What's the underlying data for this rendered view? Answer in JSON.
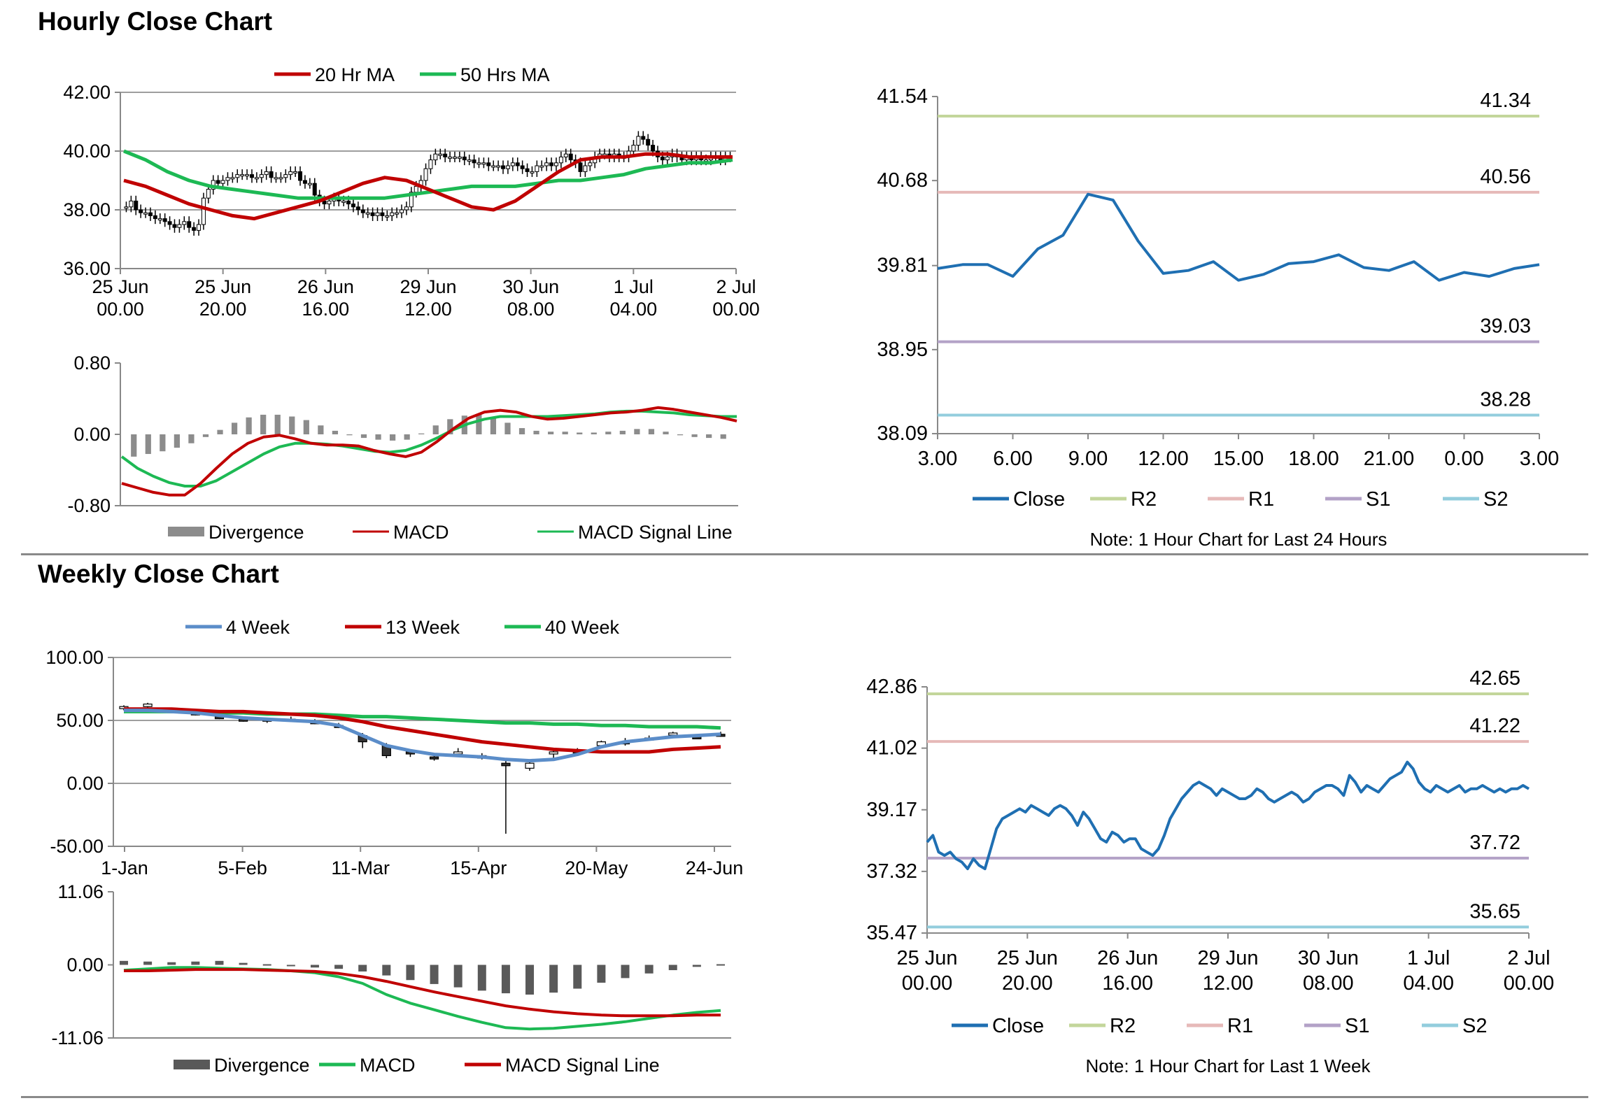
{
  "sections": {
    "hourly_title": "Hourly Close Chart",
    "weekly_title": "Weekly Close Chart"
  },
  "colors": {
    "ma20": "#c00000",
    "ma50": "#1db954",
    "close": "#1f6fb2",
    "r2": "#c3d69b",
    "r1": "#e6b9b8",
    "s1": "#b3a2c7",
    "s2": "#93cddd",
    "w4": "#5b8dc9",
    "divergence_light": "#8c8c8c",
    "divergence_dark": "#595959"
  },
  "chart_data": [
    {
      "id": "hourly_price",
      "type": "candlestick",
      "y_ticks": [
        "42.00",
        "40.00",
        "38.00",
        "36.00"
      ],
      "ylim": [
        36,
        42
      ],
      "x_ticks": [
        [
          "25 Jun",
          "00.00"
        ],
        [
          "25 Jun",
          "20.00"
        ],
        [
          "26 Jun",
          "16.00"
        ],
        [
          "29 Jun",
          "12.00"
        ],
        [
          "30 Jun",
          "08.00"
        ],
        [
          "1 Jul",
          "04.00"
        ],
        [
          "2 Jul",
          "00.00"
        ]
      ],
      "legend": [
        "20 Hr MA",
        "50 Hrs MA"
      ],
      "n": 126,
      "close": [
        38.1,
        38.3,
        38.0,
        37.9,
        37.9,
        37.8,
        37.7,
        37.7,
        37.6,
        37.5,
        37.4,
        37.5,
        37.6,
        37.4,
        37.3,
        37.5,
        38.4,
        38.7,
        39.0,
        38.9,
        39.0,
        39.1,
        39.1,
        39.2,
        39.2,
        39.2,
        39.1,
        39.1,
        39.2,
        39.3,
        39.1,
        39.1,
        39.1,
        39.2,
        39.3,
        39.3,
        39.0,
        38.9,
        38.9,
        38.5,
        38.3,
        38.2,
        38.3,
        38.4,
        38.3,
        38.3,
        38.2,
        38.1,
        38.0,
        37.9,
        37.9,
        37.8,
        37.9,
        37.8,
        37.8,
        37.9,
        37.9,
        38.0,
        38.1,
        38.6,
        38.8,
        39.0,
        39.4,
        39.7,
        39.9,
        39.9,
        39.8,
        39.8,
        39.8,
        39.8,
        39.7,
        39.7,
        39.6,
        39.6,
        39.6,
        39.5,
        39.5,
        39.5,
        39.4,
        39.5,
        39.6,
        39.5,
        39.4,
        39.3,
        39.3,
        39.5,
        39.5,
        39.6,
        39.5,
        39.6,
        39.8,
        39.9,
        39.7,
        39.6,
        39.3,
        39.5,
        39.6,
        39.8,
        39.9,
        39.9,
        39.8,
        39.9,
        39.8,
        39.8,
        40.0,
        40.2,
        40.5,
        40.4,
        40.2,
        40.0,
        39.8,
        39.7,
        39.8,
        39.9,
        39.8,
        39.7,
        39.8,
        39.7,
        39.8,
        39.7,
        39.7,
        39.8,
        39.8,
        39.7,
        39.8,
        39.8
      ],
      "ma20": [
        39.0,
        38.8,
        38.5,
        38.2,
        38.0,
        37.8,
        37.7,
        37.9,
        38.1,
        38.3,
        38.6,
        38.9,
        39.1,
        39.0,
        38.7,
        38.4,
        38.1,
        38.0,
        38.3,
        38.8,
        39.3,
        39.7,
        39.8,
        39.8,
        39.9,
        39.9,
        39.8,
        39.8,
        39.8
      ],
      "ma50": [
        40.0,
        39.7,
        39.3,
        39.0,
        38.8,
        38.7,
        38.6,
        38.5,
        38.4,
        38.4,
        38.4,
        38.4,
        38.4,
        38.5,
        38.6,
        38.7,
        38.8,
        38.8,
        38.8,
        38.9,
        39.0,
        39.0,
        39.1,
        39.2,
        39.4,
        39.5,
        39.6,
        39.6,
        39.7
      ]
    },
    {
      "id": "hourly_macd",
      "type": "bar+line",
      "y_ticks": [
        "0.80",
        "0.00",
        "-0.80"
      ],
      "ylim": [
        -0.8,
        0.8
      ],
      "legend": [
        "Divergence",
        "MACD",
        "MACD Signal Line"
      ],
      "divergence": [
        -0.25,
        -0.22,
        -0.19,
        -0.15,
        -0.1,
        -0.03,
        0.05,
        0.13,
        0.19,
        0.22,
        0.22,
        0.2,
        0.16,
        0.1,
        0.04,
        -0.01,
        -0.04,
        -0.06,
        -0.07,
        -0.06,
        0.01,
        0.1,
        0.17,
        0.21,
        0.22,
        0.19,
        0.13,
        0.07,
        0.04,
        0.03,
        0.03,
        0.02,
        0.02,
        0.03,
        0.04,
        0.06,
        0.06,
        0.03,
        -0.01,
        -0.03,
        -0.04,
        -0.05
      ],
      "macd": [
        -0.55,
        -0.6,
        -0.65,
        -0.68,
        -0.68,
        -0.55,
        -0.38,
        -0.22,
        -0.1,
        -0.03,
        -0.01,
        -0.05,
        -0.1,
        -0.12,
        -0.12,
        -0.13,
        -0.18,
        -0.22,
        -0.25,
        -0.2,
        -0.08,
        0.06,
        0.18,
        0.25,
        0.27,
        0.25,
        0.2,
        0.17,
        0.18,
        0.2,
        0.22,
        0.24,
        0.25,
        0.27,
        0.3,
        0.28,
        0.25,
        0.22,
        0.19,
        0.15
      ],
      "signal": [
        -0.25,
        -0.38,
        -0.47,
        -0.54,
        -0.58,
        -0.58,
        -0.52,
        -0.42,
        -0.32,
        -0.22,
        -0.14,
        -0.1,
        -0.1,
        -0.11,
        -0.13,
        -0.16,
        -0.19,
        -0.2,
        -0.18,
        -0.12,
        -0.04,
        0.05,
        0.12,
        0.17,
        0.2,
        0.2,
        0.2,
        0.2,
        0.21,
        0.22,
        0.23,
        0.25,
        0.26,
        0.26,
        0.25,
        0.24,
        0.22,
        0.21,
        0.2,
        0.2
      ]
    },
    {
      "id": "hourly_24h",
      "type": "line",
      "y_ticks": [
        "41.54",
        "40.68",
        "39.81",
        "38.95",
        "38.09"
      ],
      "ylim": [
        38.09,
        41.54
      ],
      "x_ticks": [
        "3.00",
        "6.00",
        "9.00",
        "12.00",
        "15.00",
        "18.00",
        "21.00",
        "0.00",
        "3.00"
      ],
      "legend": [
        "Close",
        "R2",
        "R1",
        "S1",
        "S2"
      ],
      "levels": {
        "R2": "41.34",
        "R1": "40.56",
        "S1": "39.03",
        "S2": "38.28"
      },
      "close": [
        39.78,
        39.82,
        39.82,
        39.7,
        39.98,
        40.12,
        40.54,
        40.48,
        40.06,
        39.73,
        39.76,
        39.85,
        39.66,
        39.72,
        39.83,
        39.85,
        39.92,
        39.79,
        39.76,
        39.85,
        39.66,
        39.74,
        39.7,
        39.78,
        39.82
      ],
      "note": "Note: 1 Hour Chart for Last 24 Hours"
    },
    {
      "id": "weekly_price",
      "type": "candlestick",
      "y_ticks": [
        "100.00",
        "50.00",
        "0.00",
        "-50.00"
      ],
      "ylim": [
        -50,
        100
      ],
      "x_ticks": [
        "1-Jan",
        "5-Feb",
        "11-Mar",
        "15-Apr",
        "20-May",
        "24-Jun"
      ],
      "legend": [
        "4 Week",
        "13 Week",
        "40 Week"
      ],
      "candles": [
        [
          60,
          62,
          58,
          61
        ],
        [
          61,
          64,
          59,
          63
        ],
        [
          58,
          60,
          56,
          57
        ],
        [
          56,
          58,
          54,
          55
        ],
        [
          53,
          55,
          51,
          52
        ],
        [
          51,
          53,
          49,
          50
        ],
        [
          50,
          52,
          48,
          51
        ],
        [
          51,
          53,
          49,
          50
        ],
        [
          49,
          51,
          47,
          48
        ],
        [
          46,
          48,
          44,
          45
        ],
        [
          38,
          40,
          28,
          33
        ],
        [
          30,
          32,
          20,
          22
        ],
        [
          25,
          27,
          21,
          24
        ],
        [
          21,
          23,
          18,
          20
        ],
        [
          24,
          28,
          21,
          25
        ],
        [
          22,
          24,
          19,
          20
        ],
        [
          16,
          19,
          -40,
          14
        ],
        [
          12,
          18,
          10,
          16
        ],
        [
          24,
          26,
          20,
          25
        ],
        [
          26,
          28,
          22,
          24
        ],
        [
          30,
          34,
          29,
          33
        ],
        [
          33,
          36,
          30,
          32
        ],
        [
          36,
          38,
          34,
          35
        ],
        [
          39,
          41,
          37,
          40
        ],
        [
          37,
          39,
          35,
          36
        ],
        [
          39,
          41,
          37,
          38
        ]
      ],
      "w4": [
        58,
        58,
        57,
        56,
        54,
        52,
        51,
        50,
        49,
        46,
        38,
        30,
        26,
        23,
        22,
        21,
        19,
        18,
        19,
        23,
        29,
        33,
        35,
        37,
        38,
        39
      ],
      "w13": [
        59,
        59,
        59,
        58,
        57,
        57,
        56,
        55,
        54,
        52,
        49,
        45,
        42,
        39,
        36,
        33,
        31,
        29,
        27,
        26,
        25,
        25,
        25,
        27,
        28,
        29
      ],
      "w40": [
        57,
        57,
        57,
        57,
        56,
        56,
        55,
        55,
        55,
        54,
        53,
        53,
        52,
        51,
        50,
        49,
        48,
        48,
        47,
        47,
        46,
        46,
        45,
        45,
        45,
        44
      ]
    },
    {
      "id": "weekly_macd",
      "type": "bar+line",
      "y_ticks": [
        "11.06",
        "0.00",
        "-11.06"
      ],
      "ylim": [
        -11.06,
        11.06
      ],
      "legend": [
        "Divergence",
        "MACD",
        "MACD Signal Line"
      ],
      "divergence": [
        0.6,
        0.5,
        0.4,
        0.5,
        0.6,
        0.3,
        0.1,
        -0.1,
        -0.4,
        -0.6,
        -1.0,
        -1.6,
        -2.3,
        -2.9,
        -3.4,
        -3.9,
        -4.3,
        -4.5,
        -4.2,
        -3.6,
        -2.7,
        -2.0,
        -1.3,
        -0.8,
        -0.3,
        0.1
      ],
      "macd": [
        -0.8,
        -0.6,
        -0.4,
        -0.4,
        -0.5,
        -0.6,
        -0.7,
        -0.9,
        -1.2,
        -1.8,
        -2.8,
        -4.5,
        -5.8,
        -6.8,
        -7.8,
        -8.7,
        -9.5,
        -9.7,
        -9.6,
        -9.3,
        -9.0,
        -8.6,
        -8.1,
        -7.6,
        -7.2,
        -6.9
      ],
      "signal": [
        -0.9,
        -0.9,
        -0.8,
        -0.7,
        -0.7,
        -0.7,
        -0.8,
        -0.9,
        -1.0,
        -1.3,
        -1.8,
        -2.5,
        -3.3,
        -4.1,
        -4.8,
        -5.5,
        -6.2,
        -6.7,
        -7.1,
        -7.4,
        -7.6,
        -7.7,
        -7.7,
        -7.7,
        -7.6,
        -7.6
      ]
    },
    {
      "id": "weekly_1w",
      "type": "line",
      "y_ticks": [
        "42.86",
        "41.02",
        "39.17",
        "37.32",
        "35.47"
      ],
      "ylim": [
        35.47,
        42.86
      ],
      "x_ticks": [
        [
          "25 Jun",
          "00.00"
        ],
        [
          "25 Jun",
          "20.00"
        ],
        [
          "26 Jun",
          "16.00"
        ],
        [
          "29 Jun",
          "12.00"
        ],
        [
          "30 Jun",
          "08.00"
        ],
        [
          "1 Jul",
          "04.00"
        ],
        [
          "2 Jul",
          "00.00"
        ]
      ],
      "legend": [
        "Close",
        "R2",
        "R1",
        "S1",
        "S2"
      ],
      "levels": {
        "R2": "42.65",
        "R1": "41.22",
        "S1": "37.72",
        "S2": "35.65"
      },
      "close": [
        38.2,
        38.4,
        37.9,
        37.8,
        37.9,
        37.7,
        37.6,
        37.4,
        37.7,
        37.5,
        37.4,
        38.0,
        38.6,
        38.9,
        39.0,
        39.1,
        39.2,
        39.1,
        39.3,
        39.2,
        39.1,
        39.0,
        39.2,
        39.3,
        39.2,
        39.0,
        38.7,
        39.1,
        38.9,
        38.6,
        38.3,
        38.2,
        38.5,
        38.4,
        38.2,
        38.3,
        38.3,
        38.0,
        37.9,
        37.8,
        38.0,
        38.4,
        38.9,
        39.2,
        39.5,
        39.7,
        39.9,
        40.0,
        39.9,
        39.8,
        39.6,
        39.8,
        39.7,
        39.6,
        39.5,
        39.5,
        39.6,
        39.8,
        39.7,
        39.5,
        39.4,
        39.5,
        39.6,
        39.7,
        39.6,
        39.4,
        39.5,
        39.7,
        39.8,
        39.9,
        39.9,
        39.8,
        39.6,
        40.2,
        40.0,
        39.7,
        39.9,
        39.8,
        39.7,
        39.9,
        40.1,
        40.2,
        40.3,
        40.6,
        40.4,
        40.0,
        39.8,
        39.7,
        39.9,
        39.8,
        39.7,
        39.8,
        39.9,
        39.7,
        39.8,
        39.8,
        39.9,
        39.8,
        39.7,
        39.8,
        39.7,
        39.8,
        39.8,
        39.9,
        39.8
      ],
      "note": "Note: 1 Hour Chart for Last 1 Week"
    }
  ]
}
